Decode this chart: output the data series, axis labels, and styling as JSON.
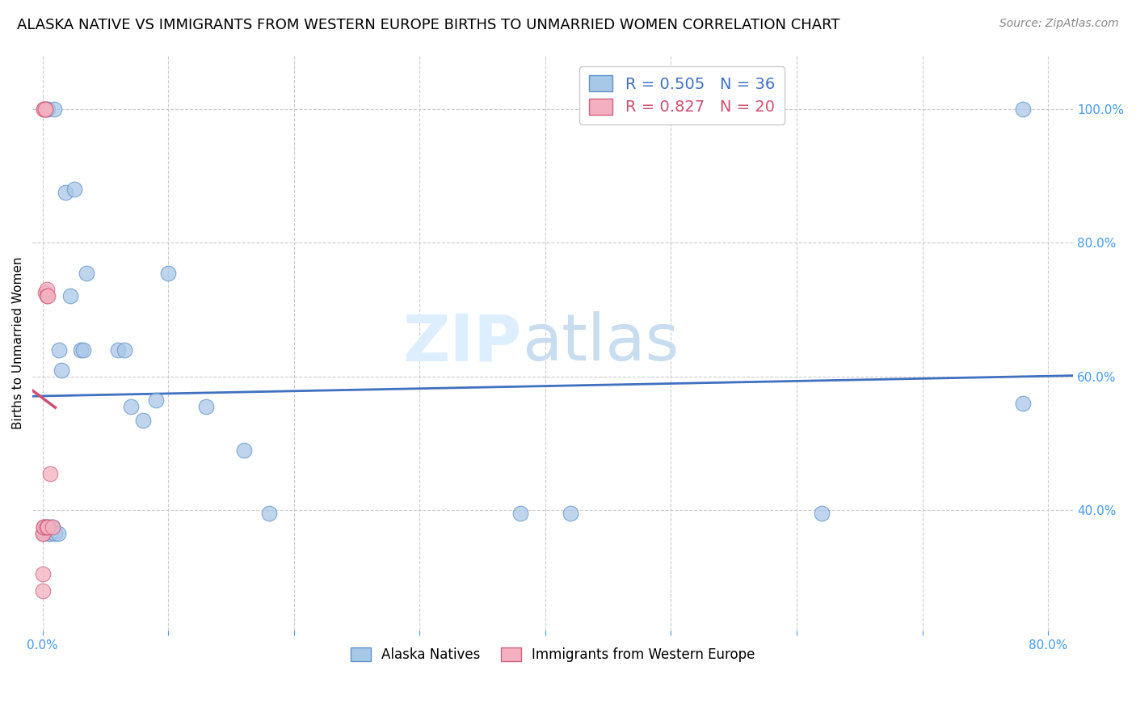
{
  "title": "ALASKA NATIVE VS IMMIGRANTS FROM WESTERN EUROPE BIRTHS TO UNMARRIED WOMEN CORRELATION CHART",
  "source": "Source: ZipAtlas.com",
  "ylabel": "Births to Unmarried Women",
  "legend_blue_label": "Alaska Natives",
  "legend_pink_label": "Immigrants from Western Europe",
  "legend_blue_r": "R = 0.505",
  "legend_blue_n": "N = 36",
  "legend_pink_r": "R = 0.827",
  "legend_pink_n": "N = 20",
  "blue_color": "#a8c8e8",
  "pink_color": "#f4b0c0",
  "blue_edge_color": "#6090c8",
  "pink_edge_color": "#d06080",
  "blue_line_color": "#4070c0",
  "pink_line_color": "#d05070",
  "watermark_color": "#ddeeff",
  "blue_x": [
    0.001,
    0.001,
    0.002,
    0.003,
    0.003,
    0.004,
    0.005,
    0.005,
    0.006,
    0.007,
    0.008,
    0.009,
    0.01,
    0.012,
    0.013,
    0.015,
    0.018,
    0.022,
    0.025,
    0.03,
    0.032,
    0.035,
    0.06,
    0.065,
    0.07,
    0.08,
    0.09,
    0.1,
    0.13,
    0.16,
    0.18,
    0.38,
    0.42,
    0.62,
    0.78,
    0.78
  ],
  "blue_y": [
    0.365,
    0.37,
    0.375,
    0.375,
    1.0,
    1.0,
    0.375,
    0.365,
    0.365,
    0.375,
    0.375,
    1.0,
    0.365,
    0.365,
    0.64,
    0.61,
    0.875,
    0.72,
    0.88,
    0.64,
    0.64,
    0.755,
    0.64,
    0.64,
    0.555,
    0.535,
    0.565,
    0.755,
    0.555,
    0.49,
    0.395,
    0.395,
    0.395,
    0.395,
    0.56,
    1.0
  ],
  "pink_x": [
    0.0,
    0.0,
    0.0,
    0.0,
    0.001,
    0.001,
    0.001,
    0.001,
    0.001,
    0.002,
    0.002,
    0.002,
    0.003,
    0.003,
    0.003,
    0.003,
    0.004,
    0.004,
    0.006,
    0.008
  ],
  "pink_y": [
    0.365,
    0.365,
    0.28,
    0.305,
    1.0,
    1.0,
    0.375,
    0.375,
    0.375,
    1.0,
    1.0,
    0.725,
    0.73,
    0.72,
    0.375,
    0.375,
    0.72,
    0.375,
    0.455,
    0.375
  ],
  "xlim": [
    -0.008,
    0.82
  ],
  "ylim": [
    0.22,
    1.08
  ],
  "yticks": [
    0.4,
    0.6,
    0.8,
    1.0
  ],
  "ytick_labels": [
    "40.0%",
    "60.0%",
    "80.0%",
    "100.0%"
  ],
  "xticks": [
    0.0,
    0.1,
    0.2,
    0.3,
    0.4,
    0.5,
    0.6,
    0.7,
    0.8
  ],
  "xtick_labels": [
    "0.0%",
    "",
    "",
    "",
    "",
    "",
    "",
    "",
    "80.0%"
  ],
  "grid_color": "#cccccc",
  "axis_color": "#4499ee",
  "title_fontsize": 13,
  "label_fontsize": 11,
  "tick_fontsize": 11,
  "legend_fontsize": 14,
  "marker_size": 180
}
